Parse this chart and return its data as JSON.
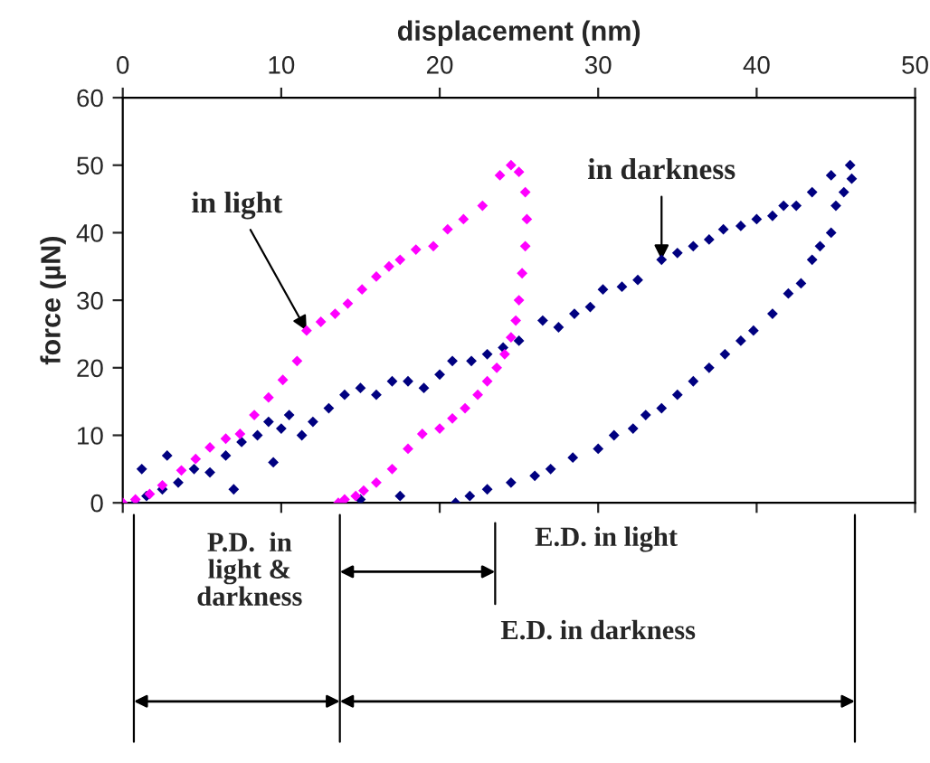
{
  "chart_data": {
    "type": "scatter",
    "xlabel": "displacement (nm)",
    "ylabel": "force (µN)",
    "xlim": [
      0,
      50
    ],
    "xticks": [
      0,
      10,
      20,
      30,
      40,
      50
    ],
    "ylim": [
      0,
      60
    ],
    "yticks": [
      0,
      10,
      20,
      30,
      40,
      50,
      60
    ],
    "grid": false,
    "legend": false,
    "marker": "diamond",
    "series": [
      {
        "color": "#ff00ff",
        "x": [
          0,
          0.8,
          1.7,
          2.5,
          3.7,
          4.6,
          5.5,
          6.5,
          7.4,
          8.3,
          9.2,
          10.1,
          11,
          11.6,
          12.5,
          13.4,
          14.2,
          15.1,
          16,
          16.8,
          17.5,
          18.5,
          19.6,
          20.5,
          21.5,
          22.7,
          23.8,
          24.5,
          25,
          25.4,
          25.5,
          25.4,
          25.2,
          25,
          24.8,
          24.5,
          24.1,
          23.6,
          23,
          22.4,
          21.6,
          20.8,
          20,
          18.9,
          18,
          17,
          16,
          15.2,
          14.7,
          14,
          13.6
        ],
        "values": [
          0,
          0.5,
          1.3,
          2.6,
          4.8,
          6.5,
          8.2,
          9.5,
          10.2,
          13,
          15.6,
          18.2,
          21,
          25.5,
          26.8,
          28,
          29.5,
          31.6,
          33.5,
          35,
          36,
          37.5,
          38,
          40.5,
          42,
          44,
          48.5,
          50,
          49,
          46,
          42,
          38,
          34,
          30,
          27,
          24.5,
          22,
          20,
          18,
          16,
          14,
          12.5,
          11,
          10.2,
          8,
          5,
          3,
          1.8,
          1,
          0.5,
          0
        ]
      },
      {
        "color": "#000080",
        "x": [
          0.8,
          1.5,
          2.5,
          3.5,
          4.5,
          5.5,
          6.5,
          7.5,
          8.5,
          9.2,
          10,
          10.5,
          11.3,
          12,
          13,
          14,
          15,
          16,
          17,
          18,
          19,
          20,
          20.8,
          22,
          23,
          24,
          25,
          26.5,
          27.5,
          28.5,
          29.5,
          30.3,
          31.5,
          32.5,
          34,
          35,
          36,
          37,
          37.9,
          39,
          40,
          41,
          41.7,
          42.5,
          43.5,
          44.7,
          45.9,
          46,
          45.5,
          45,
          44.7,
          44,
          43.5,
          42.8,
          42,
          41,
          39.8,
          39,
          38,
          37,
          36,
          35,
          34,
          33,
          32.2,
          31,
          30,
          28.4,
          27,
          26,
          24.5,
          23,
          21.9,
          21,
          2.8,
          1.2,
          7,
          9.5,
          17.5,
          15
        ],
        "values": [
          0,
          1,
          2,
          3,
          5,
          4.5,
          7,
          9,
          10,
          12,
          11,
          13,
          10,
          12,
          14,
          16,
          17,
          16,
          18,
          18,
          17,
          19,
          21,
          21,
          22,
          23,
          24,
          27,
          26,
          28,
          29,
          31.6,
          32,
          33,
          36,
          37,
          38,
          39,
          40.5,
          41,
          42,
          42.5,
          44,
          44,
          46,
          48.5,
          50,
          48,
          46,
          44,
          40,
          38,
          36,
          32.5,
          31,
          28,
          25.5,
          24,
          22,
          20,
          18,
          16,
          14,
          13,
          11,
          10,
          8,
          6.7,
          5,
          4,
          3,
          2,
          1,
          0,
          7,
          5,
          2,
          6,
          1,
          0.5
        ]
      }
    ],
    "annotations": [
      {
        "text": "in light",
        "x": 11.6,
        "y": 25.5
      },
      {
        "text": "in darkness",
        "x": 34,
        "y": 36
      },
      "P.D.  in\nlight &\ndarkness",
      "E.D. in light",
      "E.D. in darkness"
    ]
  }
}
